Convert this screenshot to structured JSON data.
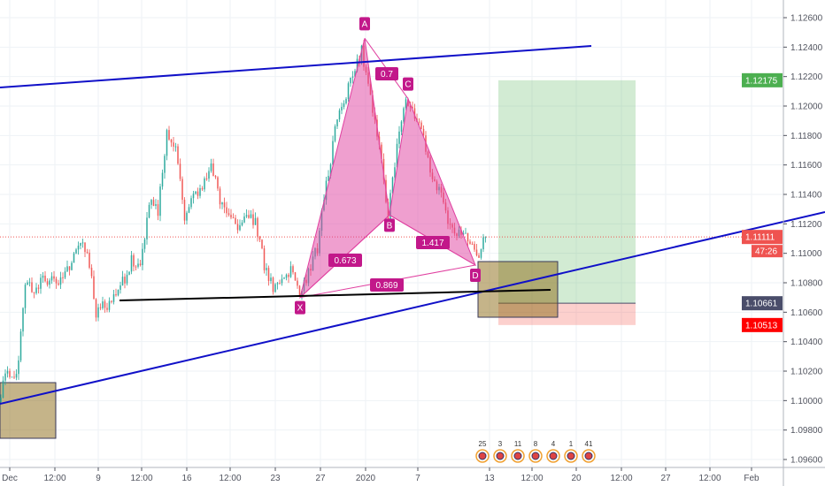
{
  "chart_data": {
    "type": "candlestick",
    "ylim": [
      1.0955,
      1.1275
    ],
    "grid": true,
    "y_ticks": [
      "1.12600",
      "1.12400",
      "1.12200",
      "1.12000",
      "1.11800",
      "1.11600",
      "1.11400",
      "1.11200",
      "1.11000",
      "1.10800",
      "1.10600",
      "1.10400",
      "1.10200",
      "1.10000",
      "1.09800",
      "1.09600"
    ],
    "x_ticks": [
      "Dec",
      "12:00",
      "9",
      "12:00",
      "16",
      "12:00",
      "23",
      "27",
      "2020",
      "7",
      "13",
      "12:00",
      "20",
      "12:00",
      "27",
      "12:00",
      "Feb"
    ],
    "closes": [
      1.0999,
      1.102,
      1.1014,
      1.108,
      1.1074,
      1.1083,
      1.108,
      1.108,
      1.1092,
      1.1107,
      1.1104,
      1.1059,
      1.1065,
      1.1068,
      1.108,
      1.1095,
      1.1092,
      1.1134,
      1.1128,
      1.1182,
      1.1173,
      1.1125,
      1.114,
      1.1146,
      1.1158,
      1.1137,
      1.1125,
      1.1119,
      1.1128,
      1.1122,
      1.1092,
      1.1077,
      1.1083,
      1.1089,
      1.107,
      1.1086,
      1.1104,
      1.1146,
      1.1182,
      1.1206,
      1.1218,
      1.1239,
      1.1206,
      1.1176,
      1.1126,
      1.117,
      1.1205,
      1.1194,
      1.1176,
      1.1152,
      1.1137,
      1.1119,
      1.1113,
      1.1109,
      1.1095,
      1.1111
    ],
    "up_color": "#26a69a",
    "down_color": "#ef5350",
    "pattern": {
      "color": "#e040a0",
      "points": [
        {
          "label": "X",
          "price": 1.107
        },
        {
          "label": "A",
          "price": 1.1246
        },
        {
          "label": "B",
          "price": 1.1126
        },
        {
          "label": "C",
          "price": 1.1205
        },
        {
          "label": "D",
          "price": 1.1092
        }
      ],
      "ratios": {
        "XB": "0.673",
        "AC": "0.7",
        "BD": "1.417",
        "XD": "0.869"
      }
    },
    "position": {
      "target": 1.12175,
      "entry": 1.10661,
      "stop": 1.10513
    },
    "price_labels": {
      "target": {
        "text": "1.12175",
        "color": "#4caf50"
      },
      "current": {
        "text": "1.11111",
        "color": "#ef5350"
      },
      "countdown": {
        "text": "47:26",
        "color": "#ef5350"
      },
      "entry": {
        "text": "1.10661",
        "color": "#4a4d6a"
      },
      "stop": {
        "text": "1.10513",
        "color": "#ff0000"
      }
    },
    "events": [
      "25",
      "3",
      "11",
      "8",
      "4",
      "1",
      "41"
    ]
  }
}
